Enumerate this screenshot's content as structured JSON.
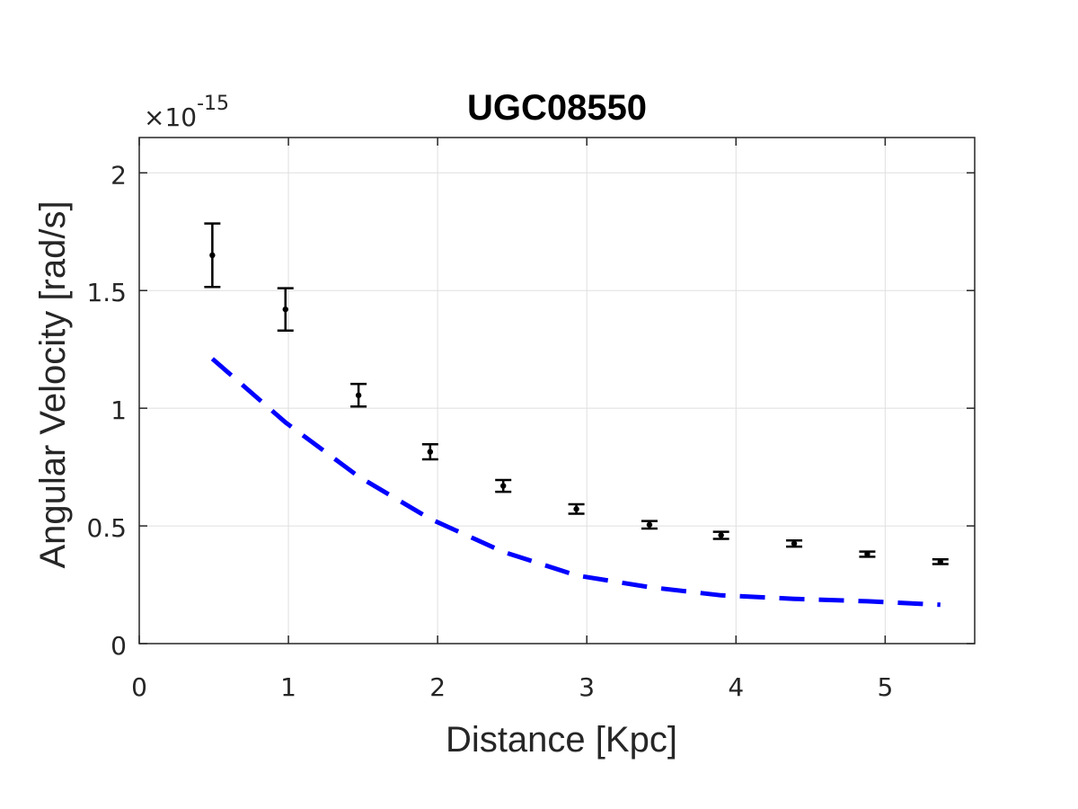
{
  "chart_data": {
    "type": "scatter",
    "title": "UGC08550",
    "xlabel": "Distance [Kpc]",
    "ylabel": "Angular Velocity [rad/s]",
    "y_multiplier_text": "×10",
    "y_multiplier_exp": "-15",
    "xlim": [
      0,
      5.6
    ],
    "ylim": [
      0,
      2.15
    ],
    "xticks": [
      0,
      1,
      2,
      3,
      4,
      5
    ],
    "xtick_labels": [
      "0",
      "1",
      "2",
      "3",
      "4",
      "5"
    ],
    "yticks": [
      0,
      0.5,
      1,
      1.5,
      2
    ],
    "ytick_labels": [
      "0",
      "0.5",
      "1",
      "1.5",
      "2"
    ],
    "grid": true,
    "series": [
      {
        "style": "points-with-errorbars",
        "color": "#000000",
        "x": [
          0.49,
          0.98,
          1.47,
          1.95,
          2.44,
          2.93,
          3.42,
          3.9,
          4.39,
          4.88,
          5.37
        ],
        "y": [
          1.65,
          1.42,
          1.055,
          0.815,
          0.67,
          0.572,
          0.505,
          0.46,
          0.425,
          0.38,
          0.348
        ],
        "err": [
          0.135,
          0.09,
          0.048,
          0.032,
          0.025,
          0.02,
          0.016,
          0.015,
          0.013,
          0.011,
          0.01
        ]
      },
      {
        "style": "dashed-line",
        "color": "#0000ff",
        "x": [
          0.49,
          0.98,
          1.47,
          1.95,
          2.44,
          2.93,
          3.42,
          3.9,
          4.39,
          4.88,
          5.37
        ],
        "y": [
          1.21,
          0.94,
          0.71,
          0.53,
          0.39,
          0.29,
          0.24,
          0.205,
          0.19,
          0.18,
          0.165
        ]
      }
    ]
  }
}
